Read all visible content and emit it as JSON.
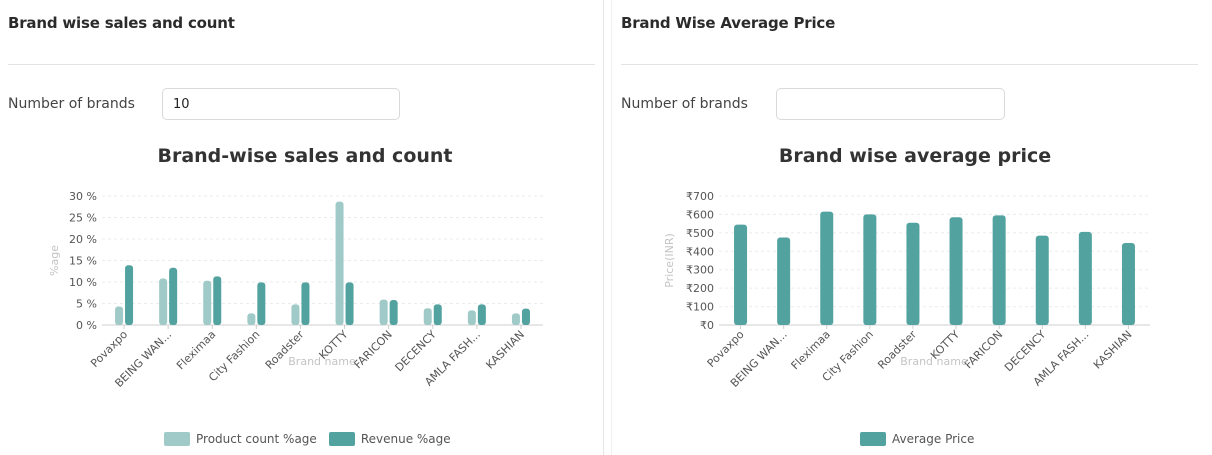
{
  "left_panel": {
    "title": "Brand wise sales and count",
    "field_label": "Number of brands",
    "field_value": "10",
    "field_placeholder": ""
  },
  "right_panel": {
    "title": "Brand Wise Average Price",
    "field_label": "Number of brands",
    "field_value": "",
    "field_placeholder": ""
  },
  "colors": {
    "product_count": "#9fcac8",
    "revenue": "#52a29f",
    "grid": "#ebebeb",
    "axis_text": "#555555"
  },
  "chart_data": [
    {
      "type": "bar",
      "title": "Brand-wise sales and count",
      "xlabel": "Brand name",
      "ylabel": "%age",
      "categories": [
        "Povaxpo",
        "BEING WAN...",
        "Fleximaa",
        "City Fashion",
        "Roadster",
        "KOTTY",
        "FARICON",
        "DECENCY",
        "AMLA FASH...",
        "KASHIAN"
      ],
      "series": [
        {
          "name": "Product count %age",
          "values": [
            4.3,
            10.8,
            10.3,
            2.7,
            4.8,
            28.7,
            5.9,
            3.9,
            3.4,
            2.7
          ]
        },
        {
          "name": "Revenue %age",
          "values": [
            13.9,
            13.3,
            11.3,
            9.9,
            9.9,
            9.9,
            5.8,
            4.8,
            4.8,
            3.8
          ]
        }
      ],
      "ylim": [
        0,
        30
      ],
      "yticks": [
        "0 %",
        "5 %",
        "10 %",
        "15 %",
        "20 %",
        "25 %",
        "30 %"
      ],
      "legend_position": "bottom"
    },
    {
      "type": "bar",
      "title": "Brand wise average price",
      "xlabel": "Brand name",
      "ylabel": "Price(INR)",
      "categories": [
        "Povaxpo",
        "BEING WAN...",
        "Fleximaa",
        "City Fashion",
        "Roadster",
        "KOTTY",
        "FARICON",
        "DECENCY",
        "AMLA FASH...",
        "KASHIAN"
      ],
      "series": [
        {
          "name": "Average Price",
          "values": [
            545,
            475,
            615,
            600,
            555,
            585,
            595,
            485,
            505,
            445
          ]
        }
      ],
      "ylim": [
        0,
        700
      ],
      "yticks": [
        "₹0",
        "₹100",
        "₹200",
        "₹300",
        "₹400",
        "₹500",
        "₹600",
        "₹700"
      ],
      "legend_position": "bottom"
    }
  ]
}
